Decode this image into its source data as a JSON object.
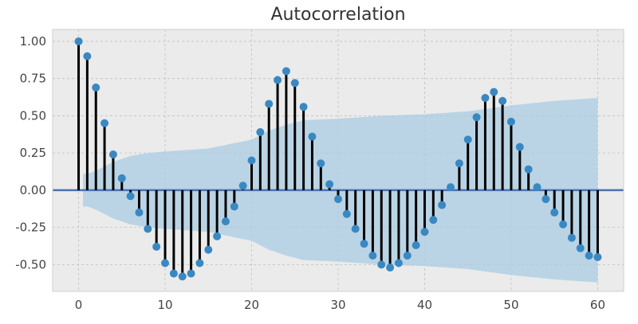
{
  "chart_data": {
    "type": "stem",
    "title": "Autocorrelation",
    "xlabel": "",
    "ylabel": "",
    "xlim": [
      -3,
      63
    ],
    "ylim": [
      -0.68,
      1.08
    ],
    "x_ticks": [
      0,
      10,
      20,
      30,
      40,
      50,
      60
    ],
    "y_ticks": [
      1.0,
      0.75,
      0.5,
      0.25,
      0.0,
      -0.25,
      -0.5
    ],
    "x_tick_labels": [
      "0",
      "10",
      "20",
      "30",
      "40",
      "50",
      "60"
    ],
    "y_tick_labels": [
      "1.00",
      "0.75",
      "0.50",
      "0.25",
      "0.00",
      "-0.25",
      "-0.50"
    ],
    "grid": true,
    "lags": [
      0,
      1,
      2,
      3,
      4,
      5,
      6,
      7,
      8,
      9,
      10,
      11,
      12,
      13,
      14,
      15,
      16,
      17,
      18,
      19,
      20,
      21,
      22,
      23,
      24,
      25,
      26,
      27,
      28,
      29,
      30,
      31,
      32,
      33,
      34,
      35,
      36,
      37,
      38,
      39,
      40,
      41,
      42,
      43,
      44,
      45,
      46,
      47,
      48,
      49,
      50,
      51,
      52,
      53,
      54,
      55,
      56,
      57,
      58,
      59,
      60
    ],
    "values": [
      1.0,
      0.9,
      0.69,
      0.45,
      0.24,
      0.08,
      -0.04,
      -0.15,
      -0.26,
      -0.38,
      -0.49,
      -0.56,
      -0.58,
      -0.56,
      -0.49,
      -0.4,
      -0.31,
      -0.21,
      -0.11,
      0.03,
      0.2,
      0.39,
      0.58,
      0.74,
      0.8,
      0.72,
      0.56,
      0.36,
      0.18,
      0.04,
      -0.06,
      -0.16,
      -0.26,
      -0.36,
      -0.44,
      -0.5,
      -0.52,
      -0.49,
      -0.44,
      -0.37,
      -0.28,
      -0.2,
      -0.1,
      0.02,
      0.18,
      0.34,
      0.49,
      0.62,
      0.66,
      0.6,
      0.46,
      0.29,
      0.14,
      0.02,
      -0.06,
      -0.15,
      -0.23,
      -0.32,
      -0.39,
      -0.44,
      -0.45
    ],
    "confint_lags": [
      1,
      2,
      3,
      4,
      5,
      6,
      7,
      8,
      10,
      15,
      20,
      22,
      24,
      26,
      30,
      35,
      40,
      45,
      50,
      55,
      60
    ],
    "confint": [
      0.11,
      0.13,
      0.16,
      0.19,
      0.21,
      0.23,
      0.24,
      0.25,
      0.26,
      0.28,
      0.34,
      0.4,
      0.44,
      0.47,
      0.48,
      0.5,
      0.51,
      0.53,
      0.57,
      0.6,
      0.62
    ],
    "colors": {
      "stem": "#000000",
      "marker": "#3a88c2",
      "zero_line": "#4c72b0",
      "confint_fill": "#a9cce3",
      "axes_bg": "#ebebeb",
      "grid": "#c0c0c0",
      "frame": "#cfcfcf"
    }
  }
}
